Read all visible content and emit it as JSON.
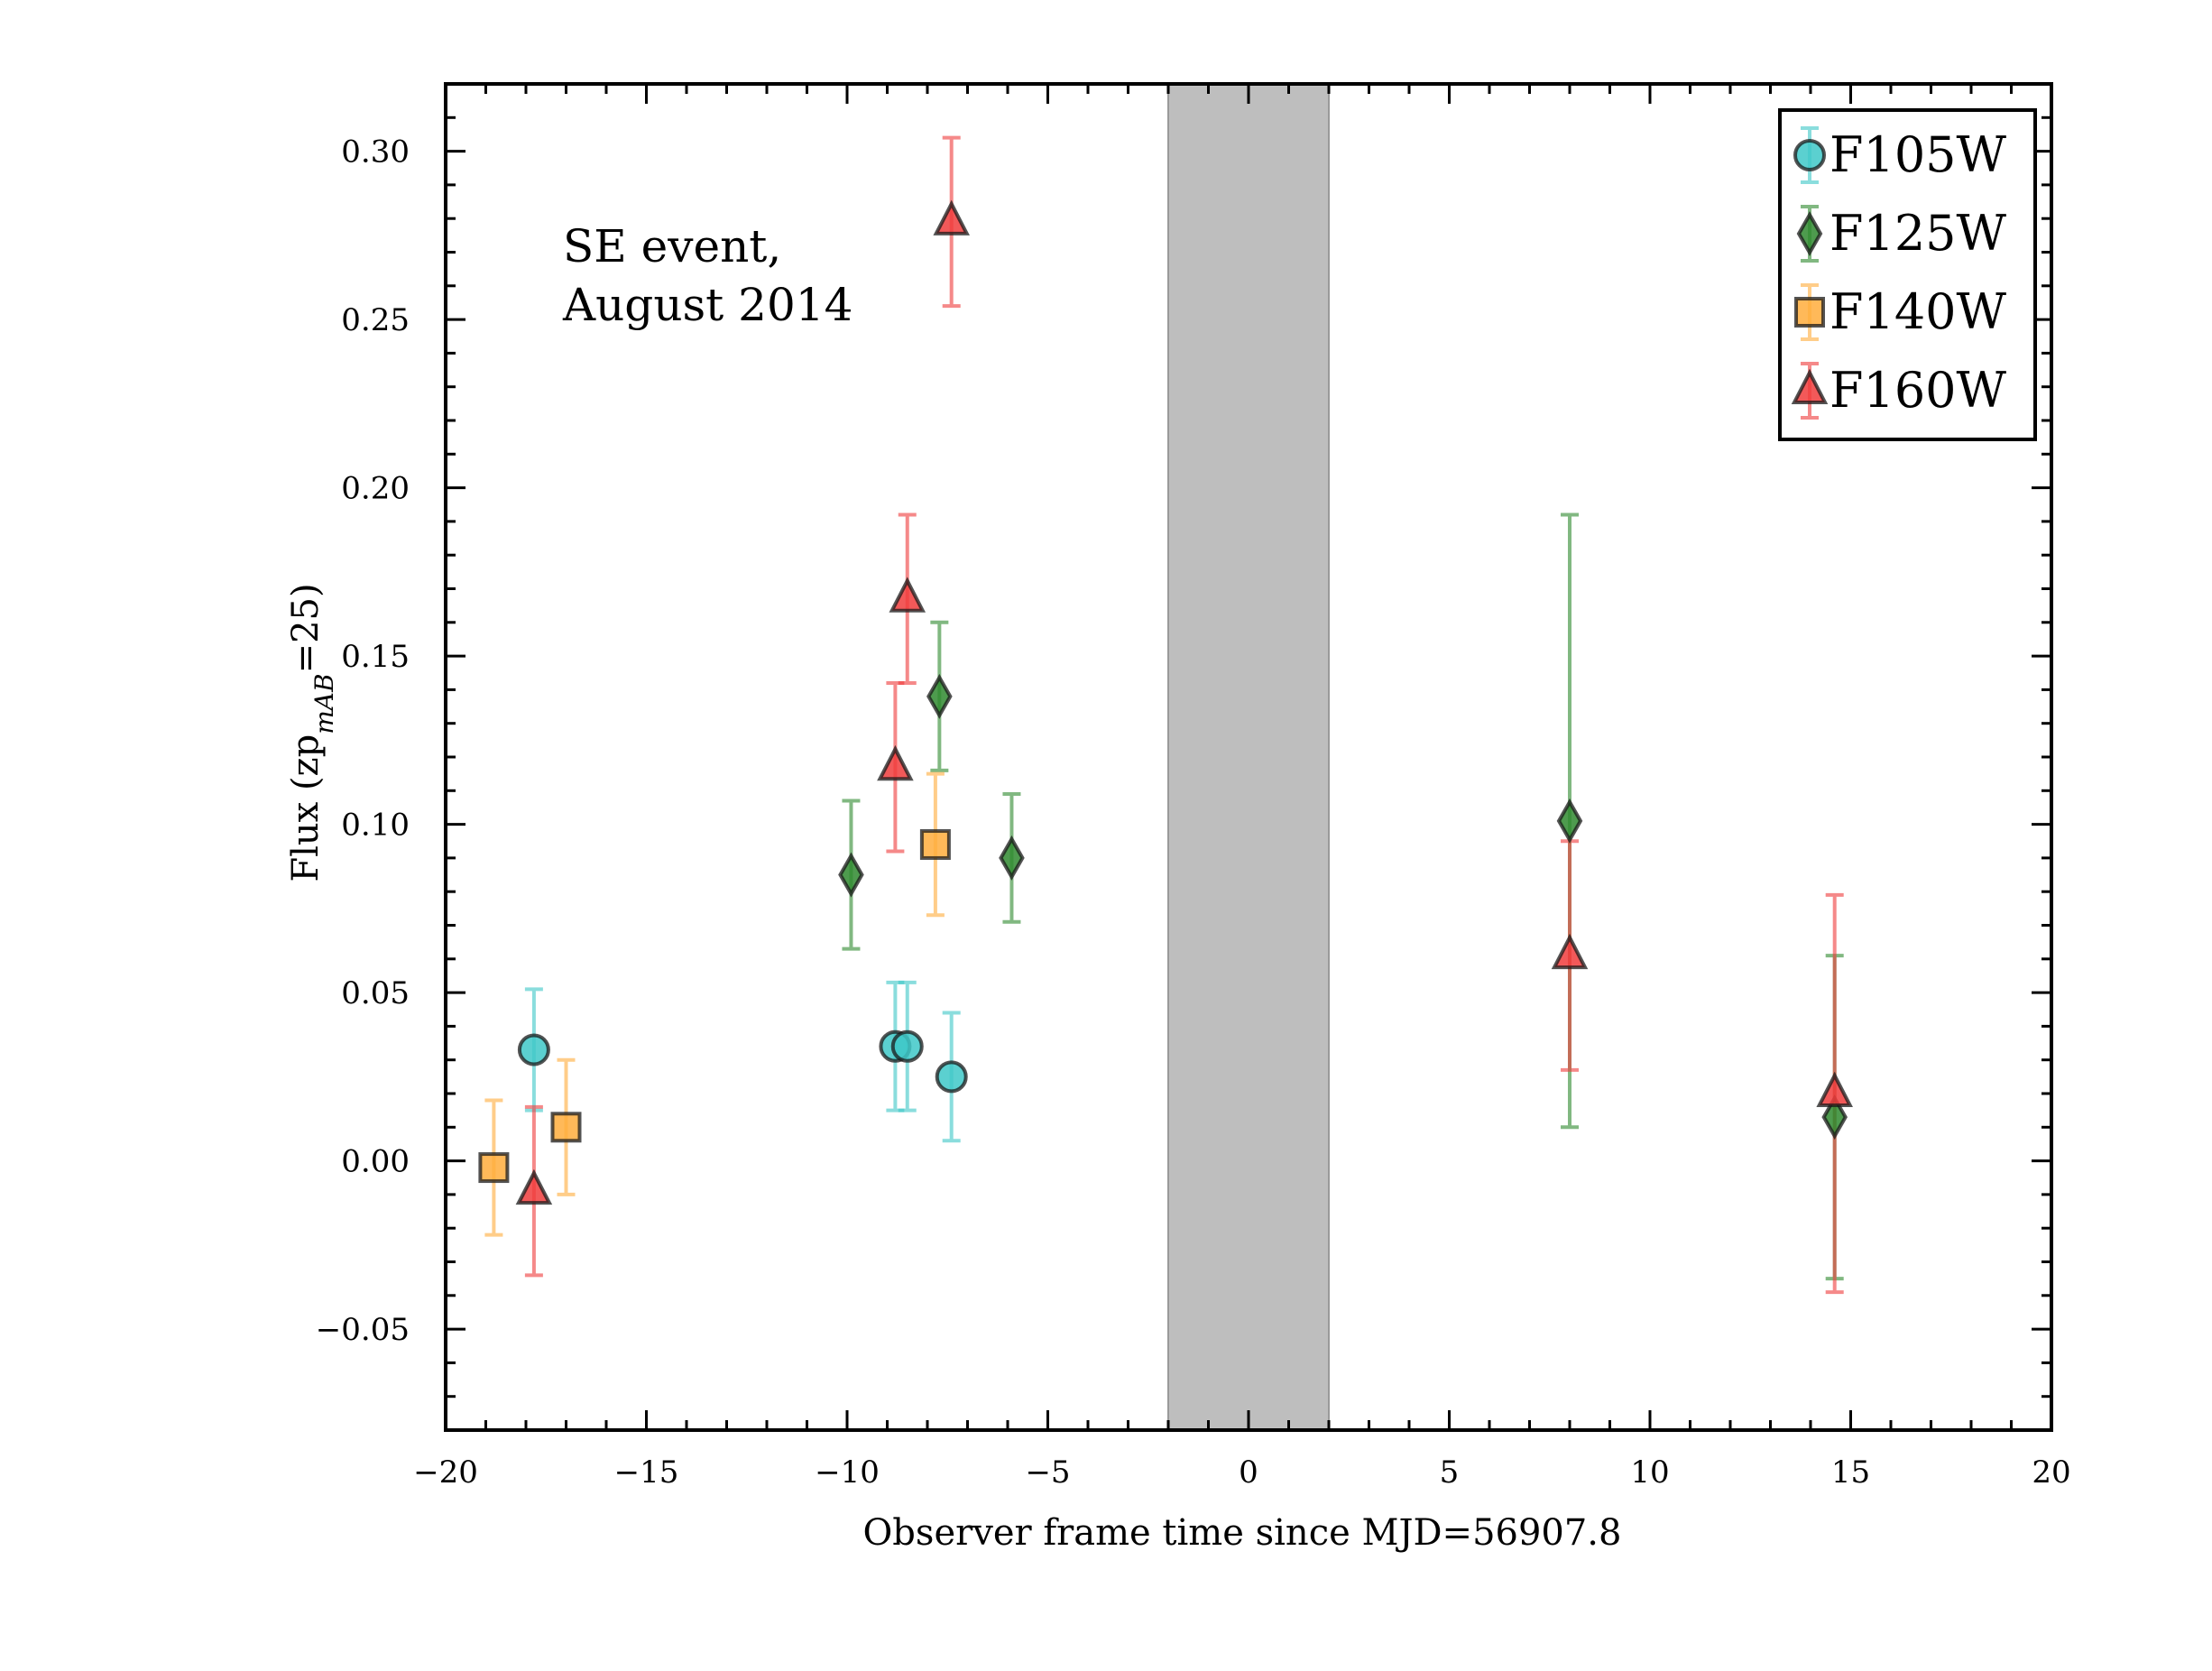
{
  "chart_data": {
    "type": "scatter",
    "xlabel": "Observer frame time since MJD=56907.8",
    "ylabel": "Flux (zp",
    "ylabel_sub": "mAB",
    "ylabel_tail": "=25)",
    "xlim": [
      -20,
      20
    ],
    "ylim": [
      -0.08,
      0.32
    ],
    "xticks": [
      -20,
      -15,
      -10,
      -5,
      0,
      5,
      10,
      15,
      20
    ],
    "xtick_labels": [
      "−20",
      "−15",
      "−10",
      "−5",
      "0",
      "5",
      "10",
      "15",
      "20"
    ],
    "yticks": [
      -0.05,
      0,
      0.05,
      0.1,
      0.15,
      0.2,
      0.25,
      0.3
    ],
    "ytick_labels": [
      "−0.05",
      "0.00",
      "0.05",
      "0.10",
      "0.15",
      "0.20",
      "0.25",
      "0.30"
    ],
    "annotation": [
      "SE event,",
      "August 2014"
    ],
    "shaded_band": {
      "x": [
        -2,
        2
      ],
      "color": "#bebebe"
    },
    "legend_position": "top-right",
    "grid": false,
    "series": [
      {
        "name": "F105W",
        "marker": "circle",
        "color": "#3ec8c8",
        "points": [
          {
            "x": -17.8,
            "y": 0.033,
            "err": 0.018
          },
          {
            "x": -8.8,
            "y": 0.034,
            "err": 0.019
          },
          {
            "x": -8.5,
            "y": 0.034,
            "err": 0.019
          },
          {
            "x": -7.4,
            "y": 0.025,
            "err": 0.019
          }
        ]
      },
      {
        "name": "F125W",
        "marker": "diamond",
        "color": "#2f8a2f",
        "points": [
          {
            "x": -9.9,
            "y": 0.085,
            "err": 0.022
          },
          {
            "x": -7.7,
            "y": 0.138,
            "err": 0.022
          },
          {
            "x": -5.9,
            "y": 0.09,
            "err": 0.019
          },
          {
            "x": 8.0,
            "y": 0.101,
            "err": 0.091
          },
          {
            "x": 14.6,
            "y": 0.013,
            "err": 0.048
          }
        ]
      },
      {
        "name": "F140W",
        "marker": "square",
        "color": "#ffad3c",
        "points": [
          {
            "x": -18.8,
            "y": -0.002,
            "err": 0.02
          },
          {
            "x": -17.0,
            "y": 0.01,
            "err": 0.02
          },
          {
            "x": -7.8,
            "y": 0.094,
            "err": 0.021
          }
        ]
      },
      {
        "name": "F160W",
        "marker": "triangle",
        "color": "#f03c3c",
        "points": [
          {
            "x": -17.8,
            "y": -0.009,
            "err": 0.025
          },
          {
            "x": -8.8,
            "y": 0.117,
            "err": 0.025
          },
          {
            "x": -8.5,
            "y": 0.167,
            "err": 0.025
          },
          {
            "x": -7.4,
            "y": 0.279,
            "err": 0.025
          },
          {
            "x": 8.0,
            "y": 0.061,
            "err": 0.034
          },
          {
            "x": 14.6,
            "y": 0.02,
            "err": 0.059
          }
        ]
      }
    ]
  }
}
